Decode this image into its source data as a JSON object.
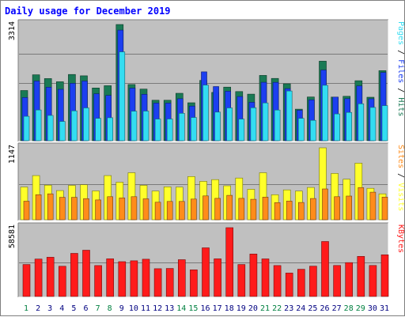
{
  "title": "Daily usage for December 2019",
  "colors": {
    "hits": "#1a7a55",
    "files": "#1c3ff0",
    "pages": "#33ddf2",
    "visits": "#ffff2a",
    "sites": "#ff8c1a",
    "kbytes": "#ff1b1b",
    "panel_bg": "#c0c0c0",
    "day_weekday": "#000080",
    "day_weekend": "#008040"
  },
  "chart_data": [
    {
      "type": "bar",
      "title": "Daily usage for December 2019",
      "categories": [
        "1",
        "2",
        "3",
        "4",
        "5",
        "6",
        "7",
        "8",
        "9",
        "10",
        "11",
        "12",
        "13",
        "14",
        "15",
        "16",
        "17",
        "18",
        "19",
        "20",
        "21",
        "22",
        "23",
        "24",
        "25",
        "26",
        "27",
        "28",
        "29",
        "30",
        "31"
      ],
      "weekend_days": [
        "1",
        "7",
        "8",
        "14",
        "15",
        "21",
        "22",
        "28",
        "29"
      ],
      "ylabel_max": "3314",
      "ylim": [
        0,
        3314
      ],
      "right_label": [
        "Pages",
        " / ",
        "Files",
        " / ",
        "Hits"
      ],
      "right_label_colors": [
        "#33ddf2",
        "#000000",
        "#1c3ff0",
        "#000000",
        "#1a7a55"
      ],
      "series": [
        {
          "name": "Hits",
          "color": "#1a7a55",
          "values": [
            1432,
            1881,
            1771,
            1682,
            1889,
            1851,
            1503,
            1569,
            3314,
            1603,
            1472,
            1155,
            1155,
            1353,
            1081,
            1721,
            1377,
            1528,
            1402,
            1327,
            1862,
            1776,
            1623,
            900,
            1247,
            2269,
            1245,
            1266,
            1711,
            1239,
            1997
          ]
        },
        {
          "name": "Files",
          "color": "#1c3ff0",
          "values": [
            1232,
            1702,
            1526,
            1465,
            1636,
            1701,
            1339,
            1291,
            3155,
            1500,
            1324,
            1072,
            1072,
            1197,
            988,
            1963,
            1545,
            1411,
            1260,
            1095,
            1665,
            1664,
            1485,
            867,
            1166,
            2015,
            1245,
            1200,
            1562,
            1195,
            1946
          ]
        },
        {
          "name": "Pages",
          "color": "#33ddf2",
          "values": [
            696,
            876,
            721,
            551,
            852,
            935,
            639,
            657,
            2535,
            843,
            846,
            617,
            619,
            783,
            662,
            1587,
            816,
            935,
            617,
            940,
            1077,
            874,
            1418,
            637,
            582,
            1580,
            764,
            806,
            1052,
            950,
            1000
          ]
        }
      ]
    },
    {
      "type": "bar",
      "categories": [
        "1",
        "2",
        "3",
        "4",
        "5",
        "6",
        "7",
        "8",
        "9",
        "10",
        "11",
        "12",
        "13",
        "14",
        "15",
        "16",
        "17",
        "18",
        "19",
        "20",
        "21",
        "22",
        "23",
        "24",
        "25",
        "26",
        "27",
        "28",
        "29",
        "30",
        "31"
      ],
      "ylabel_max": "1147",
      "ylim": [
        0,
        1147
      ],
      "right_label": [
        "Sites",
        " / ",
        "Visits"
      ],
      "right_label_colors": [
        "#ff8c1a",
        "#000000",
        "#ffff2a"
      ],
      "series": [
        {
          "name": "Visits",
          "color": "#ffff2a",
          "values": [
            522,
            704,
            552,
            465,
            548,
            558,
            460,
            704,
            599,
            750,
            550,
            458,
            526,
            520,
            690,
            612,
            640,
            542,
            666,
            486,
            750,
            399,
            477,
            458,
            516,
            1147,
            739,
            647,
            902,
            502,
            414
          ]
        },
        {
          "name": "Sites",
          "color": "#ff8c1a",
          "values": [
            296,
            399,
            413,
            358,
            358,
            336,
            317,
            368,
            348,
            368,
            334,
            280,
            292,
            293,
            330,
            381,
            342,
            390,
            342,
            326,
            361,
            274,
            298,
            276,
            339,
            491,
            368,
            378,
            513,
            440,
            362
          ]
        }
      ]
    },
    {
      "type": "bar",
      "categories": [
        "1",
        "2",
        "3",
        "4",
        "5",
        "6",
        "7",
        "8",
        "9",
        "10",
        "11",
        "12",
        "13",
        "14",
        "15",
        "16",
        "17",
        "18",
        "19",
        "20",
        "21",
        "22",
        "23",
        "24",
        "25",
        "26",
        "27",
        "28",
        "29",
        "30",
        "31"
      ],
      "ylabel_max": "58581",
      "ylim": [
        0,
        58581
      ],
      "right_label": [
        "KBytes"
      ],
      "right_label_colors": [
        "#ff1b1b"
      ],
      "series": [
        {
          "name": "KBytes",
          "color": "#ff1b1b",
          "values": [
            27210,
            31820,
            33410,
            25720,
            36700,
            39360,
            26300,
            32080,
            29600,
            30360,
            31740,
            23640,
            23830,
            31300,
            22690,
            41420,
            32030,
            58581,
            27200,
            36130,
            32010,
            26330,
            19940,
            23140,
            25810,
            46800,
            26370,
            28810,
            34170,
            26410,
            35460
          ]
        }
      ]
    }
  ]
}
